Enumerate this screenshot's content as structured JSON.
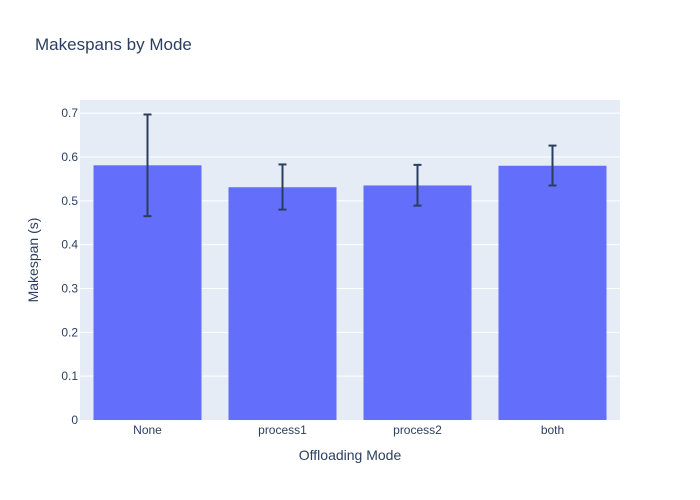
{
  "chart_data": {
    "type": "bar",
    "title": "Makespans by Mode",
    "xlabel": "Offloading Mode",
    "ylabel": "Makespan (s)",
    "categories": [
      "None",
      "process1",
      "process2",
      "both"
    ],
    "values": [
      0.581,
      0.531,
      0.535,
      0.58
    ],
    "error_bars": {
      "upper": [
        0.697,
        0.583,
        0.582,
        0.626
      ],
      "lower": [
        0.465,
        0.48,
        0.489,
        0.535
      ]
    },
    "ylim": [
      0,
      0.73
    ],
    "yticks": [
      0,
      0.1,
      0.2,
      0.3,
      0.4,
      0.5,
      0.6,
      0.7
    ],
    "ytick_labels": [
      "0",
      "0.1",
      "0.2",
      "0.3",
      "0.4",
      "0.5",
      "0.6",
      "0.7"
    ],
    "grid": true,
    "legend": "none",
    "colors": {
      "bar": "#636efa",
      "error_bar": "#2a3f5f",
      "plot_background": "#e5ecf6",
      "grid": "#ffffff",
      "text": "#2a3f5f"
    }
  }
}
